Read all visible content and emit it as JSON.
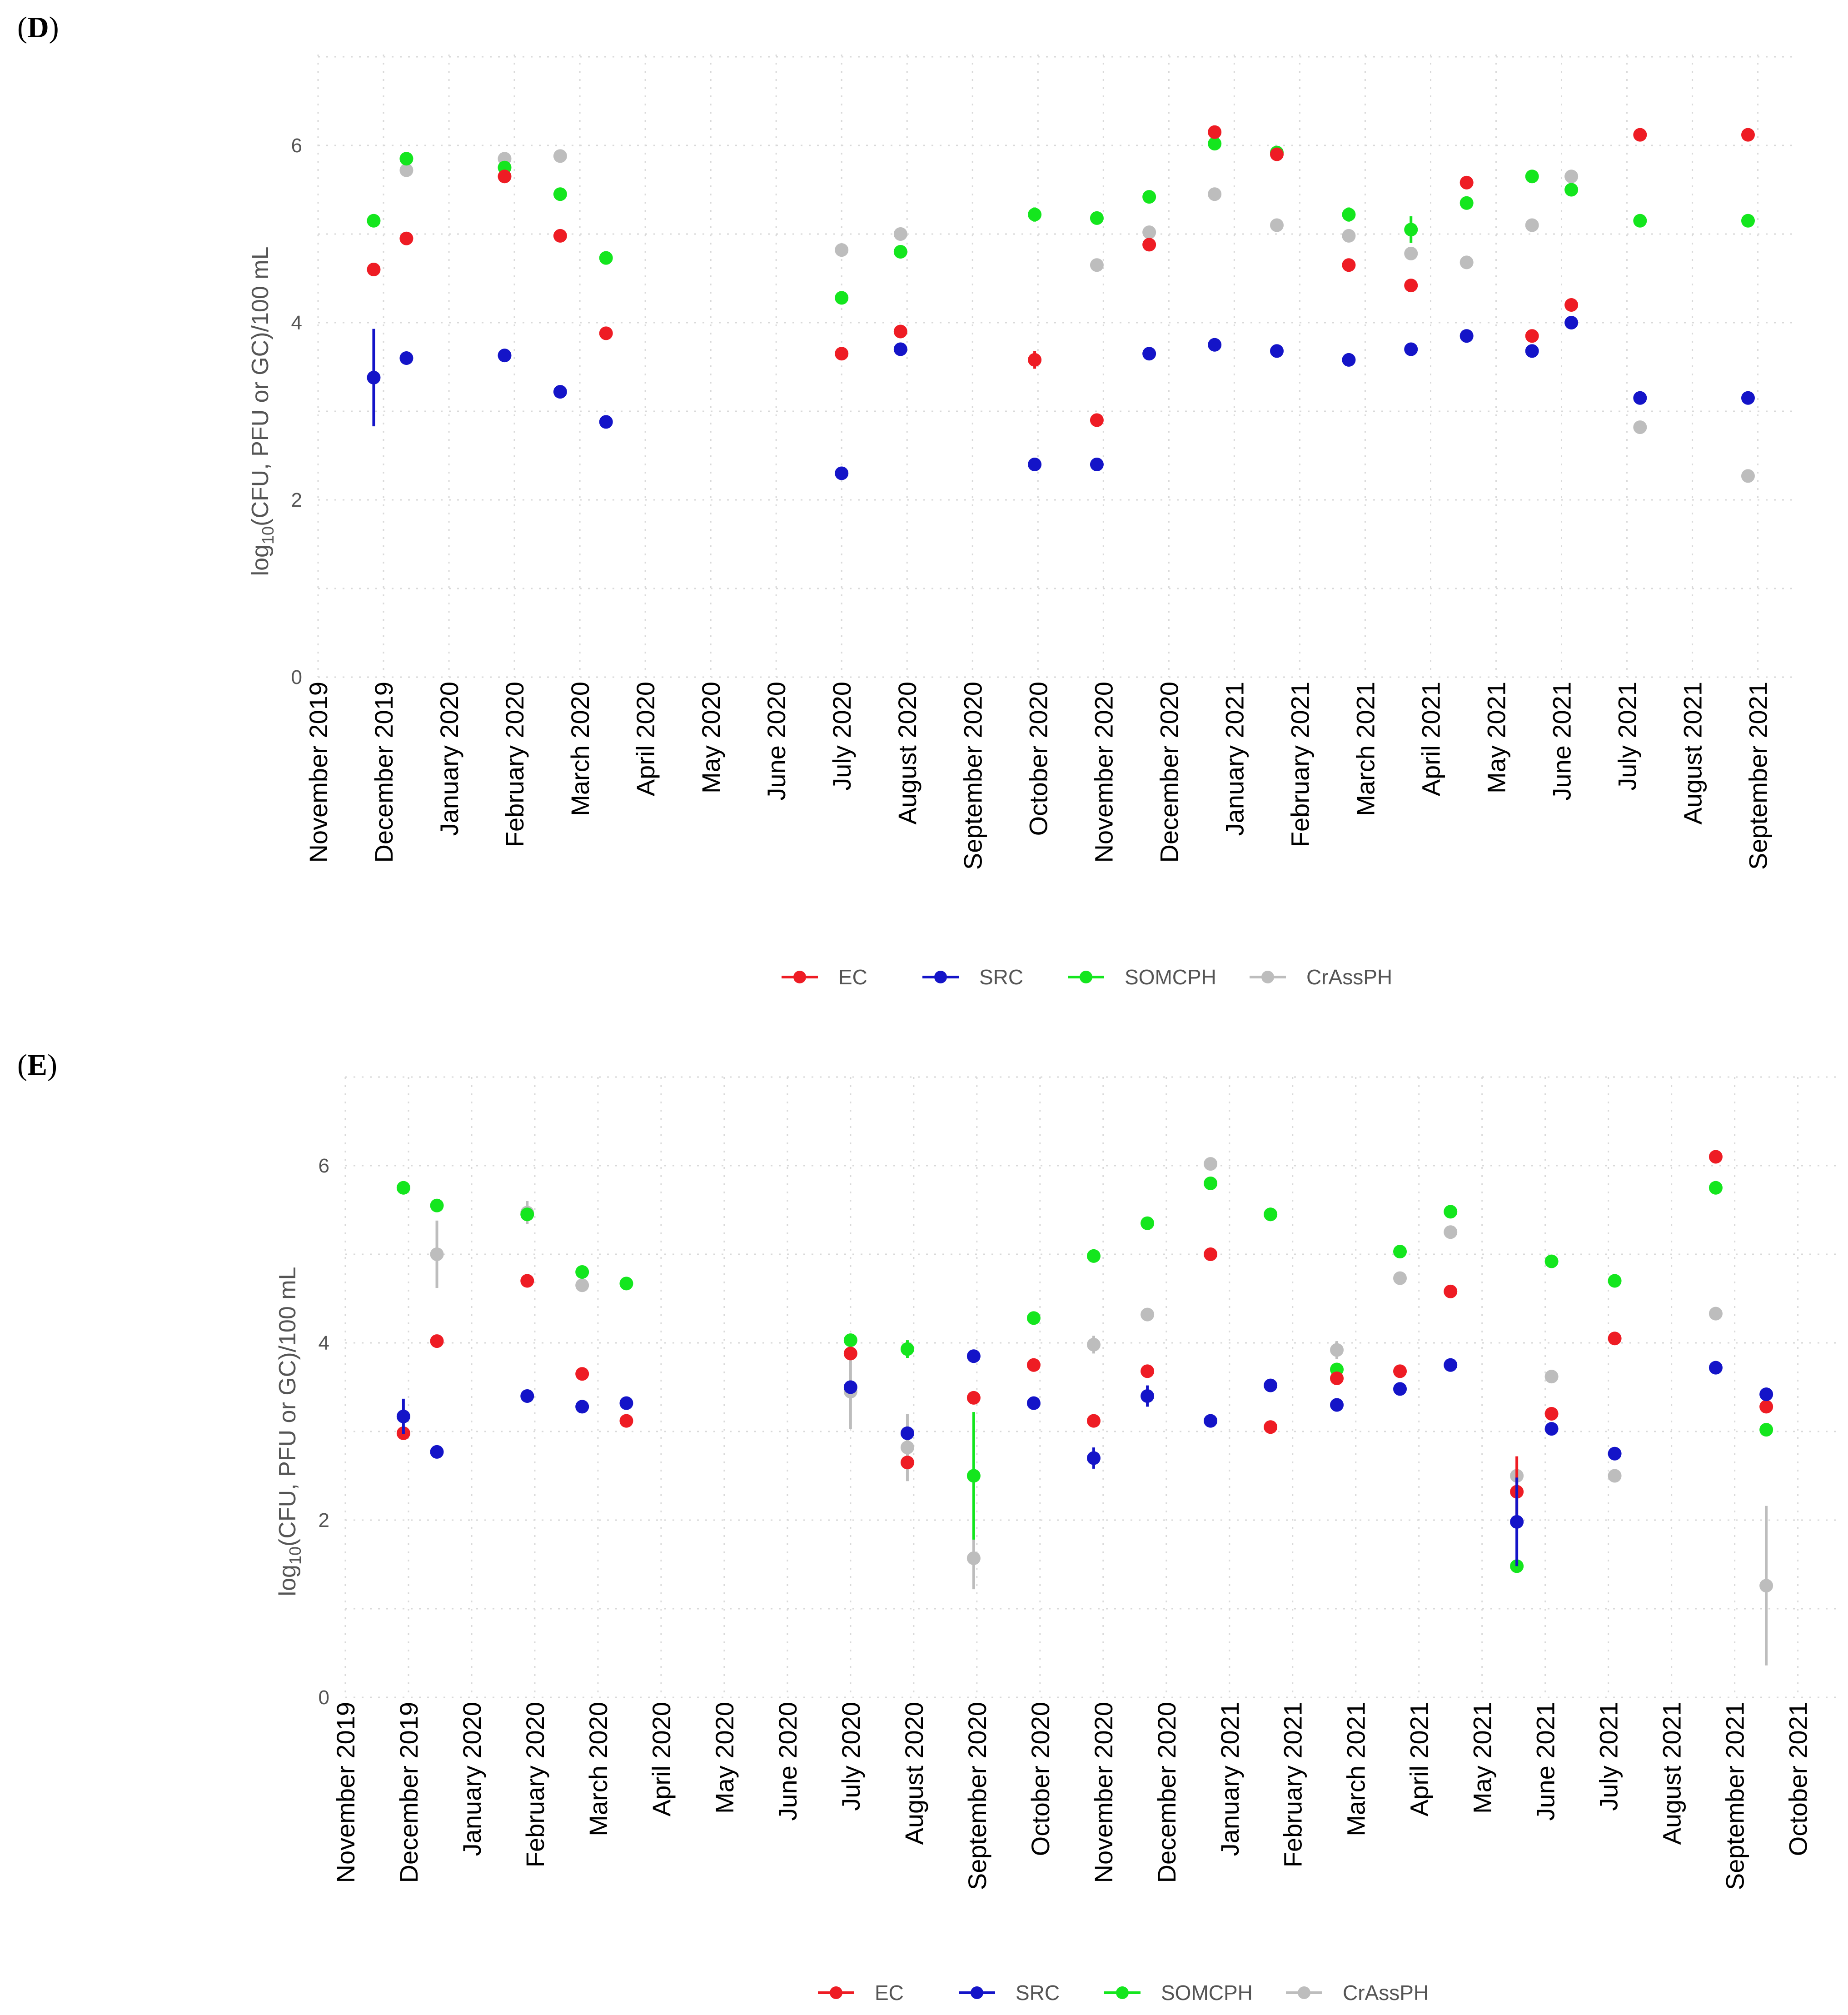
{
  "colors": {
    "EC": "#ee1c24",
    "SRC": "#1414c8",
    "SOMCPH": "#14e61e",
    "CrAssPH": "#bdbdbd"
  },
  "chart_data": [
    {
      "panel": "D",
      "type": "scatter",
      "ylabel": "log10(CFU, PFU or GC)/100 mL",
      "ylabel_parts": [
        "log",
        "10",
        "(CFU, PFU or GC)/100 mL"
      ],
      "ylim": [
        0,
        7
      ],
      "yticks": [
        "0",
        "2",
        "4",
        "6"
      ],
      "xlim": [
        0,
        22.6
      ],
      "xticks": [
        "November 2019",
        "December 2019",
        "January 2020",
        "February 2020",
        "March 2020",
        "April 2020",
        "May 2020",
        "June 2020",
        "July 2020",
        "August 2020",
        "September 2020",
        "October 2020",
        "November 2020",
        "December 2020",
        "January 2021",
        "February 2021",
        "March 2021",
        "April 2021",
        "May 2021",
        "June 2021",
        "July 2021",
        "August 2021",
        "September 2021"
      ],
      "legend": [
        "EC",
        "SRC",
        "SOMCPH",
        "CrAssPH"
      ],
      "series": [
        {
          "name": "EC",
          "points": [
            {
              "x": 0.85,
              "y": 4.6
            },
            {
              "x": 1.35,
              "y": 4.95
            },
            {
              "x": 2.85,
              "y": 5.65
            },
            {
              "x": 3.7,
              "y": 4.98
            },
            {
              "x": 4.4,
              "y": 3.88
            },
            {
              "x": 8.0,
              "y": 3.65
            },
            {
              "x": 8.9,
              "y": 3.9
            },
            {
              "x": 10.95,
              "y": 3.58,
              "err": 0.1
            },
            {
              "x": 11.9,
              "y": 2.9
            },
            {
              "x": 12.7,
              "y": 4.88
            },
            {
              "x": 13.7,
              "y": 6.15
            },
            {
              "x": 14.65,
              "y": 5.9
            },
            {
              "x": 15.75,
              "y": 4.65
            },
            {
              "x": 16.7,
              "y": 4.42
            },
            {
              "x": 17.55,
              "y": 5.58
            },
            {
              "x": 18.55,
              "y": 3.85
            },
            {
              "x": 19.15,
              "y": 4.2
            },
            {
              "x": 20.2,
              "y": 6.12
            },
            {
              "x": 21.85,
              "y": 6.12
            }
          ]
        },
        {
          "name": "SRC",
          "points": [
            {
              "x": 0.85,
              "y": 3.38,
              "err": 0.55
            },
            {
              "x": 1.35,
              "y": 3.6
            },
            {
              "x": 2.85,
              "y": 3.63
            },
            {
              "x": 3.7,
              "y": 3.22
            },
            {
              "x": 4.4,
              "y": 2.88
            },
            {
              "x": 8.0,
              "y": 2.3
            },
            {
              "x": 8.9,
              "y": 3.7
            },
            {
              "x": 10.95,
              "y": 2.4
            },
            {
              "x": 11.9,
              "y": 2.4
            },
            {
              "x": 12.7,
              "y": 3.65
            },
            {
              "x": 13.7,
              "y": 3.75
            },
            {
              "x": 14.65,
              "y": 3.68
            },
            {
              "x": 15.75,
              "y": 3.58
            },
            {
              "x": 16.7,
              "y": 3.7
            },
            {
              "x": 17.55,
              "y": 3.85
            },
            {
              "x": 18.55,
              "y": 3.68
            },
            {
              "x": 19.15,
              "y": 4.0
            },
            {
              "x": 20.2,
              "y": 3.15
            },
            {
              "x": 21.85,
              "y": 3.15
            }
          ]
        },
        {
          "name": "SOMCPH",
          "points": [
            {
              "x": 0.85,
              "y": 5.15
            },
            {
              "x": 1.35,
              "y": 5.85
            },
            {
              "x": 2.85,
              "y": 5.75
            },
            {
              "x": 3.7,
              "y": 5.45
            },
            {
              "x": 4.4,
              "y": 4.73
            },
            {
              "x": 8.0,
              "y": 4.28
            },
            {
              "x": 8.9,
              "y": 4.8
            },
            {
              "x": 10.95,
              "y": 5.22,
              "err": 0.08
            },
            {
              "x": 11.9,
              "y": 5.18
            },
            {
              "x": 12.7,
              "y": 5.42
            },
            {
              "x": 13.7,
              "y": 6.02
            },
            {
              "x": 14.65,
              "y": 5.92
            },
            {
              "x": 15.75,
              "y": 5.22,
              "err": 0.08
            },
            {
              "x": 16.7,
              "y": 5.05,
              "err": 0.15
            },
            {
              "x": 17.55,
              "y": 5.35
            },
            {
              "x": 18.55,
              "y": 5.65
            },
            {
              "x": 19.15,
              "y": 5.5
            },
            {
              "x": 20.2,
              "y": 5.15
            },
            {
              "x": 21.85,
              "y": 5.15
            }
          ]
        },
        {
          "name": "CrAssPH",
          "points": [
            {
              "x": 1.35,
              "y": 5.72
            },
            {
              "x": 2.85,
              "y": 5.85
            },
            {
              "x": 3.7,
              "y": 5.88
            },
            {
              "x": 8.0,
              "y": 4.82
            },
            {
              "x": 8.9,
              "y": 5.0
            },
            {
              "x": 11.9,
              "y": 4.65
            },
            {
              "x": 12.7,
              "y": 5.02
            },
            {
              "x": 13.7,
              "y": 5.45
            },
            {
              "x": 14.65,
              "y": 5.1
            },
            {
              "x": 15.75,
              "y": 4.98
            },
            {
              "x": 16.7,
              "y": 4.78
            },
            {
              "x": 17.55,
              "y": 4.68
            },
            {
              "x": 18.55,
              "y": 5.1
            },
            {
              "x": 19.15,
              "y": 5.65
            },
            {
              "x": 20.2,
              "y": 2.82
            },
            {
              "x": 21.85,
              "y": 2.27
            }
          ]
        }
      ]
    },
    {
      "panel": "E",
      "type": "scatter",
      "ylabel": "log10(CFU, PFU or GC)/100 mL",
      "ylabel_parts": [
        "log",
        "10",
        "(CFU, PFU or GC)/100 mL"
      ],
      "ylim": [
        0,
        7
      ],
      "yticks": [
        "0",
        "2",
        "4",
        "6"
      ],
      "xlim": [
        0,
        23.6
      ],
      "xticks": [
        "November 2019",
        "December 2019",
        "January 2020",
        "February 2020",
        "March 2020",
        "April 2020",
        "May 2020",
        "June 2020",
        "July 2020",
        "August 2020",
        "September 2020",
        "October 2020",
        "November 2020",
        "December 2020",
        "January 2021",
        "February 2021",
        "March 2021",
        "April 2021",
        "May 2021",
        "June 2021",
        "July 2021",
        "August 2021",
        "September 2021",
        "October 2021"
      ],
      "legend": [
        "EC",
        "SRC",
        "SOMCPH",
        "CrAssPH"
      ],
      "series": [
        {
          "name": "EC",
          "points": [
            {
              "x": 0.92,
              "y": 2.98
            },
            {
              "x": 1.45,
              "y": 4.02
            },
            {
              "x": 2.88,
              "y": 4.7
            },
            {
              "x": 3.75,
              "y": 3.65
            },
            {
              "x": 4.45,
              "y": 3.12
            },
            {
              "x": 8.0,
              "y": 3.88
            },
            {
              "x": 8.9,
              "y": 2.65
            },
            {
              "x": 9.95,
              "y": 3.38
            },
            {
              "x": 10.9,
              "y": 3.75
            },
            {
              "x": 11.85,
              "y": 3.12
            },
            {
              "x": 12.7,
              "y": 3.68
            },
            {
              "x": 13.7,
              "y": 5.0
            },
            {
              "x": 14.65,
              "y": 3.05
            },
            {
              "x": 15.7,
              "y": 3.6
            },
            {
              "x": 16.7,
              "y": 3.68
            },
            {
              "x": 17.5,
              "y": 4.58
            },
            {
              "x": 18.55,
              "y": 2.32,
              "err": 0.4
            },
            {
              "x": 19.1,
              "y": 3.2
            },
            {
              "x": 20.1,
              "y": 4.05
            },
            {
              "x": 21.7,
              "y": 6.1
            },
            {
              "x": 22.5,
              "y": 3.28
            }
          ]
        },
        {
          "name": "SRC",
          "points": [
            {
              "x": 0.92,
              "y": 3.17,
              "err": 0.2
            },
            {
              "x": 1.45,
              "y": 2.77
            },
            {
              "x": 2.88,
              "y": 3.4
            },
            {
              "x": 3.75,
              "y": 3.28
            },
            {
              "x": 4.45,
              "y": 3.32
            },
            {
              "x": 8.0,
              "y": 3.5
            },
            {
              "x": 8.9,
              "y": 2.98
            },
            {
              "x": 9.95,
              "y": 3.85
            },
            {
              "x": 10.9,
              "y": 3.32
            },
            {
              "x": 11.85,
              "y": 2.7,
              "err": 0.12
            },
            {
              "x": 12.7,
              "y": 3.4,
              "err": 0.12
            },
            {
              "x": 13.7,
              "y": 3.12
            },
            {
              "x": 14.65,
              "y": 3.52
            },
            {
              "x": 15.7,
              "y": 3.3
            },
            {
              "x": 16.7,
              "y": 3.48
            },
            {
              "x": 17.5,
              "y": 3.75
            },
            {
              "x": 18.55,
              "y": 1.98,
              "err": 0.5
            },
            {
              "x": 19.1,
              "y": 3.03
            },
            {
              "x": 20.1,
              "y": 2.75
            },
            {
              "x": 21.7,
              "y": 3.72
            },
            {
              "x": 22.5,
              "y": 3.42
            }
          ]
        },
        {
          "name": "SOMCPH",
          "points": [
            {
              "x": 0.92,
              "y": 5.75
            },
            {
              "x": 1.45,
              "y": 5.55
            },
            {
              "x": 2.88,
              "y": 5.45
            },
            {
              "x": 3.75,
              "y": 4.8
            },
            {
              "x": 4.45,
              "y": 4.67
            },
            {
              "x": 8.0,
              "y": 4.03
            },
            {
              "x": 8.9,
              "y": 3.93,
              "err": 0.1
            },
            {
              "x": 9.95,
              "y": 2.5,
              "err": 0.72
            },
            {
              "x": 10.9,
              "y": 4.28
            },
            {
              "x": 11.85,
              "y": 4.98
            },
            {
              "x": 12.7,
              "y": 5.35
            },
            {
              "x": 13.7,
              "y": 5.8
            },
            {
              "x": 14.65,
              "y": 5.45
            },
            {
              "x": 15.7,
              "y": 3.7
            },
            {
              "x": 16.7,
              "y": 5.03
            },
            {
              "x": 17.5,
              "y": 5.48
            },
            {
              "x": 18.55,
              "y": 1.48
            },
            {
              "x": 19.1,
              "y": 4.92
            },
            {
              "x": 20.1,
              "y": 4.7
            },
            {
              "x": 21.7,
              "y": 5.75
            },
            {
              "x": 22.5,
              "y": 3.02
            }
          ]
        },
        {
          "name": "CrAssPH",
          "points": [
            {
              "x": 1.45,
              "y": 5.0,
              "err": 0.38
            },
            {
              "x": 2.88,
              "y": 5.47,
              "err": 0.13
            },
            {
              "x": 3.75,
              "y": 4.65
            },
            {
              "x": 8.0,
              "y": 3.45,
              "err": 0.42
            },
            {
              "x": 8.9,
              "y": 2.82,
              "err": 0.38
            },
            {
              "x": 9.95,
              "y": 1.57,
              "err": 0.35
            },
            {
              "x": 11.85,
              "y": 3.98,
              "err": 0.1
            },
            {
              "x": 12.7,
              "y": 4.32
            },
            {
              "x": 13.7,
              "y": 6.02
            },
            {
              "x": 14.65,
              "y": 5.45
            },
            {
              "x": 15.7,
              "y": 3.92,
              "err": 0.1
            },
            {
              "x": 16.7,
              "y": 4.73
            },
            {
              "x": 17.5,
              "y": 5.25
            },
            {
              "x": 18.55,
              "y": 2.5
            },
            {
              "x": 19.1,
              "y": 3.62
            },
            {
              "x": 20.1,
              "y": 2.5
            },
            {
              "x": 21.7,
              "y": 4.33
            },
            {
              "x": 22.5,
              "y": 1.26,
              "err": 0.9
            }
          ]
        }
      ]
    }
  ]
}
